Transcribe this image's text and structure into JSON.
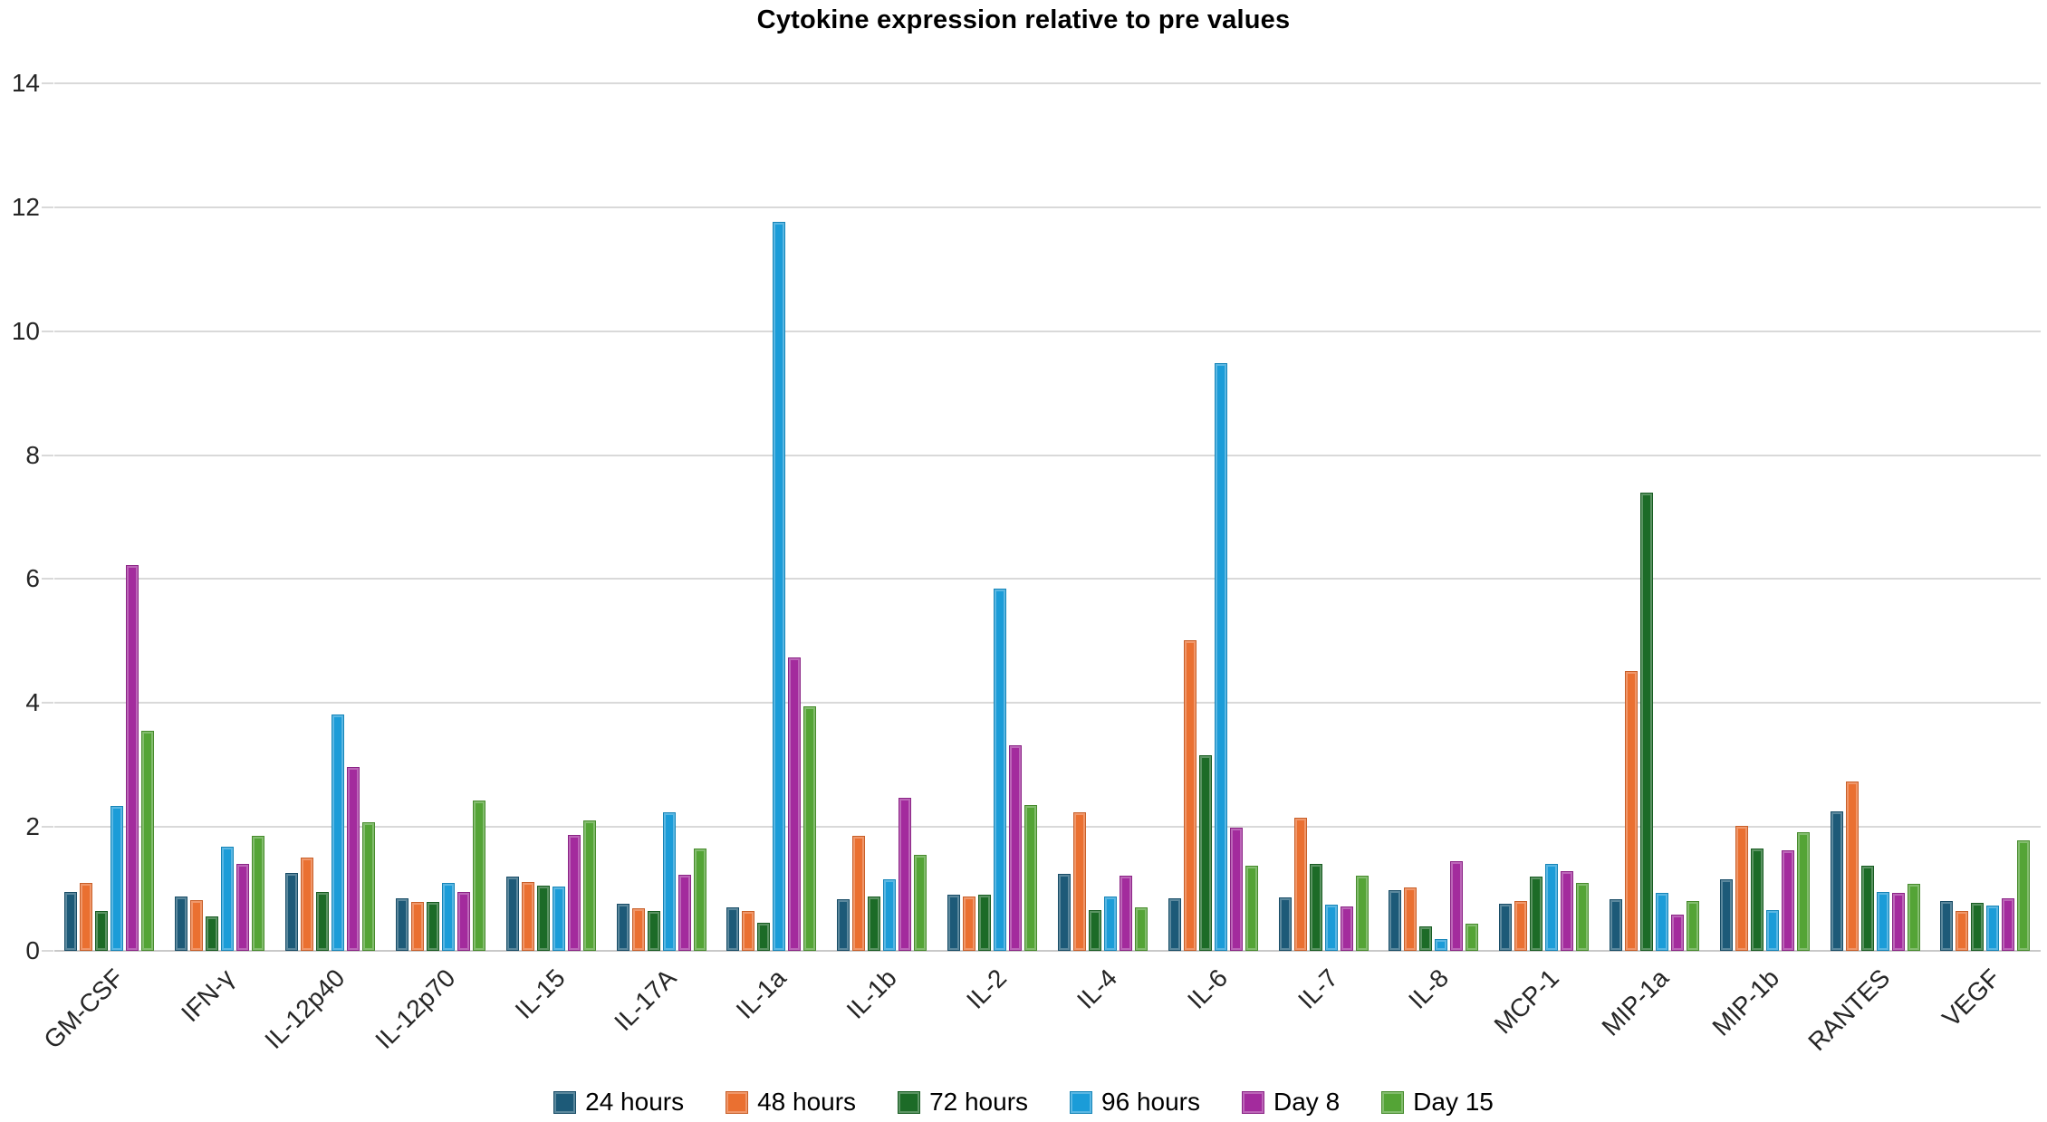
{
  "chart_data": {
    "type": "bar",
    "title": "Cytokine expression relative to pre values",
    "xlabel": "",
    "ylabel": "",
    "ylim": [
      0,
      14
    ],
    "yticks": [
      0,
      2,
      4,
      6,
      8,
      10,
      12,
      14
    ],
    "grid": true,
    "legend_position": "bottom",
    "gridline_color": "#d9d9d9",
    "baseline_color": "#c9c9c9",
    "axis_text_color": "#262626",
    "categories": [
      "GM-CSF",
      "IFN-γ",
      "IL-12p40",
      "IL-12p70",
      "IL-15",
      "IL-17A",
      "IL-1a",
      "IL-1b",
      "IL-2",
      "IL-4",
      "IL-6",
      "IL-7",
      "IL-8",
      "MCP-1",
      "MIP-1a",
      "MIP-1b",
      "RANTES",
      "VEGF"
    ],
    "series": [
      {
        "name": "24 hours",
        "color": "#1d5a78",
        "values": [
          0.95,
          0.88,
          1.25,
          0.85,
          1.2,
          0.76,
          0.7,
          0.84,
          0.9,
          1.24,
          0.85,
          0.86,
          0.98,
          0.76,
          0.84,
          1.15,
          2.25,
          0.8
        ]
      },
      {
        "name": "48 hours",
        "color": "#ea7031",
        "values": [
          1.1,
          0.82,
          1.5,
          0.79,
          1.11,
          0.69,
          0.65,
          1.86,
          0.88,
          2.23,
          5.02,
          2.15,
          1.03,
          0.81,
          4.52,
          2.01,
          2.74,
          0.65
        ]
      },
      {
        "name": "72 hours",
        "color": "#1c6b27",
        "values": [
          0.65,
          0.55,
          0.95,
          0.79,
          1.05,
          0.64,
          0.45,
          0.87,
          0.9,
          0.66,
          3.15,
          1.4,
          0.4,
          1.2,
          7.4,
          1.65,
          1.38,
          0.77
        ]
      },
      {
        "name": "96 hours",
        "color": "#1b9cd8",
        "values": [
          2.34,
          1.68,
          3.81,
          1.1,
          1.04,
          2.24,
          11.76,
          1.15,
          5.84,
          0.87,
          9.49,
          0.74,
          0.19,
          1.41,
          0.93,
          0.66,
          0.95,
          0.73
        ]
      },
      {
        "name": "Day 8",
        "color": "#a32b9d",
        "values": [
          6.22,
          1.4,
          2.96,
          0.95,
          1.87,
          1.23,
          4.74,
          2.47,
          3.32,
          1.22,
          1.99,
          0.71,
          1.45,
          1.28,
          0.58,
          1.62,
          0.93,
          0.85
        ]
      },
      {
        "name": "Day 15",
        "color": "#54a436",
        "values": [
          3.55,
          1.86,
          2.07,
          2.42,
          2.1,
          1.65,
          3.94,
          1.55,
          2.35,
          0.7,
          1.38,
          1.21,
          0.44,
          1.1,
          0.8,
          1.92,
          1.08,
          1.79
        ]
      }
    ]
  }
}
